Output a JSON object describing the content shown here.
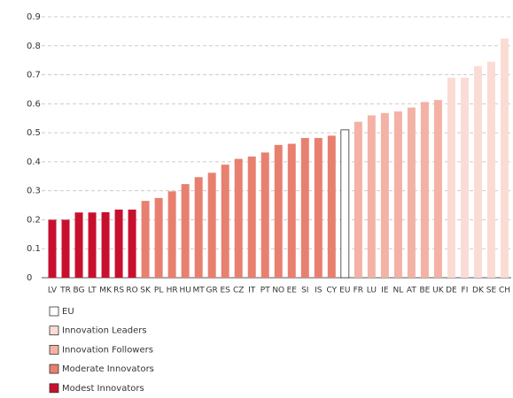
{
  "chart_data": {
    "type": "bar",
    "categories": [
      "LV",
      "TR",
      "BG",
      "LT",
      "MK",
      "RS",
      "RO",
      "SK",
      "PL",
      "HR",
      "HU",
      "MT",
      "GR",
      "ES",
      "CZ",
      "IT",
      "PT",
      "NO",
      "EE",
      "SI",
      "IS",
      "CY",
      "EU",
      "FR",
      "LU",
      "IE",
      "NL",
      "AT",
      "BE",
      "UK",
      "DE",
      "FI",
      "DK",
      "SE",
      "CH"
    ],
    "values": [
      0.2,
      0.2,
      0.225,
      0.225,
      0.226,
      0.235,
      0.235,
      0.265,
      0.275,
      0.298,
      0.323,
      0.347,
      0.362,
      0.39,
      0.41,
      0.418,
      0.432,
      0.458,
      0.462,
      0.482,
      0.482,
      0.49,
      0.51,
      0.538,
      0.56,
      0.568,
      0.574,
      0.587,
      0.606,
      0.613,
      0.69,
      0.69,
      0.73,
      0.745,
      0.825
    ],
    "groups": [
      4,
      4,
      4,
      4,
      4,
      4,
      4,
      3,
      3,
      3,
      3,
      3,
      3,
      3,
      3,
      3,
      3,
      3,
      3,
      3,
      3,
      3,
      0,
      2,
      2,
      2,
      2,
      2,
      2,
      2,
      1,
      1,
      1,
      1,
      1
    ],
    "legend": [
      {
        "name": "EU",
        "color": "#ffffff"
      },
      {
        "name": "Innovation Leaders",
        "color": "#fadcd5"
      },
      {
        "name": "Innovation Followers",
        "color": "#f3b2a5"
      },
      {
        "name": "Moderate Innovators",
        "color": "#e8806f"
      },
      {
        "name": "Modest Innovators",
        "color": "#c8102e"
      }
    ],
    "ylim": [
      0,
      0.9
    ],
    "yticks": [
      0,
      0.1,
      0.2,
      0.3,
      0.4,
      0.5,
      0.6,
      0.7,
      0.8,
      0.9
    ],
    "grid": true
  }
}
